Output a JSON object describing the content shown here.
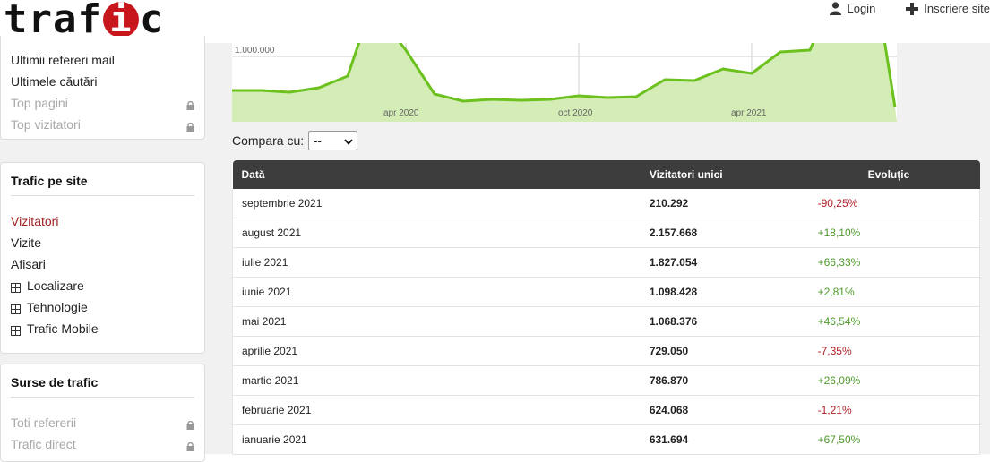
{
  "header": {
    "logo_left": "traf",
    "logo_ball": "i",
    "logo_right": "c",
    "nav": [
      {
        "label": "Login",
        "icon": "user-icon"
      },
      {
        "label": "Inscriere site",
        "icon": "plus-icon"
      }
    ]
  },
  "sidebar": {
    "panel1": {
      "items": [
        {
          "label": "Ultimii refereri mail",
          "locked": false
        },
        {
          "label": "Ultimele căutări",
          "locked": false
        },
        {
          "label": "Top pagini",
          "locked": true
        },
        {
          "label": "Top vizitatori",
          "locked": true
        }
      ]
    },
    "panel2": {
      "title": "Trafic pe site",
      "items": [
        {
          "label": "Vizitatori",
          "active": true
        },
        {
          "label": "Vizite"
        },
        {
          "label": "Afisari"
        },
        {
          "label": "Localizare",
          "expandable": true
        },
        {
          "label": "Tehnologie",
          "expandable": true
        },
        {
          "label": "Trafic Mobile",
          "expandable": true
        }
      ]
    },
    "panel3": {
      "title": "Surse de trafic",
      "items": [
        {
          "label": "Toti refererii",
          "locked": true
        },
        {
          "label": "Trafic direct",
          "locked": true
        }
      ]
    }
  },
  "chart_data": {
    "type": "area",
    "ytick_label": "1.000.000",
    "xtick_labels": [
      "apr 2020",
      "oct 2020",
      "apr 2021"
    ],
    "colors": {
      "line": "#6cc11e",
      "fill": "#d4ecb6"
    }
  },
  "compare": {
    "label": "Compara cu:",
    "selected": "--"
  },
  "table": {
    "headers": [
      "Dată",
      "Vizitatori unici",
      "Evoluție"
    ],
    "rows": [
      {
        "date": "septembrie 2021",
        "visitors": "210.292",
        "evolution": "-90,25%",
        "trend": "neg"
      },
      {
        "date": "august 2021",
        "visitors": "2.157.668",
        "evolution": "+18,10%",
        "trend": "pos"
      },
      {
        "date": "iulie 2021",
        "visitors": "1.827.054",
        "evolution": "+66,33%",
        "trend": "pos"
      },
      {
        "date": "iunie 2021",
        "visitors": "1.098.428",
        "evolution": "+2,81%",
        "trend": "pos"
      },
      {
        "date": "mai 2021",
        "visitors": "1.068.376",
        "evolution": "+46,54%",
        "trend": "pos"
      },
      {
        "date": "aprilie 2021",
        "visitors": "729.050",
        "evolution": "-7,35%",
        "trend": "neg"
      },
      {
        "date": "martie 2021",
        "visitors": "786.870",
        "evolution": "+26,09%",
        "trend": "pos"
      },
      {
        "date": "februarie 2021",
        "visitors": "624.068",
        "evolution": "-1,21%",
        "trend": "neg"
      },
      {
        "date": "ianuarie 2021",
        "visitors": "631.694",
        "evolution": "+67,50%",
        "trend": "pos"
      }
    ]
  }
}
